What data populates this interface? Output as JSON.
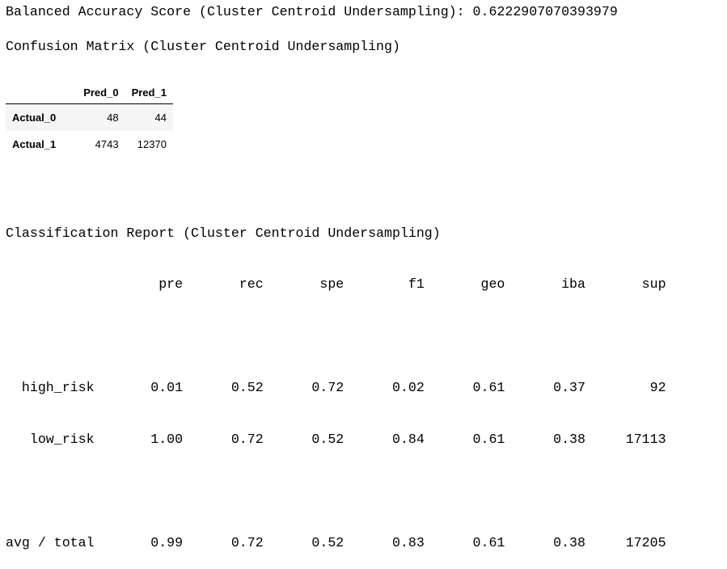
{
  "score_line": "Balanced Accuracy Score (Cluster Centroid Undersampling): 0.6222907070393979",
  "confusion_title": "Confusion Matrix (Cluster Centroid Undersampling)",
  "confusion_table": {
    "columns": [
      "Pred_0",
      "Pred_1"
    ],
    "rows": [
      {
        "label": "Actual_0",
        "values": [
          "48",
          "44"
        ]
      },
      {
        "label": "Actual_1",
        "values": [
          "4743",
          "12370"
        ]
      }
    ]
  },
  "report_title": "Classification Report (Cluster Centroid Undersampling)",
  "report_header": "                   pre       rec       spe        f1       geo       iba       sup",
  "report_rows": [
    "",
    "  high_risk       0.01      0.52      0.72      0.02      0.61      0.37        92",
    "   low_risk       1.00      0.72      0.52      0.84      0.61      0.38     17113",
    "",
    "avg / total       0.99      0.72      0.52      0.83      0.61      0.38     17205"
  ]
}
